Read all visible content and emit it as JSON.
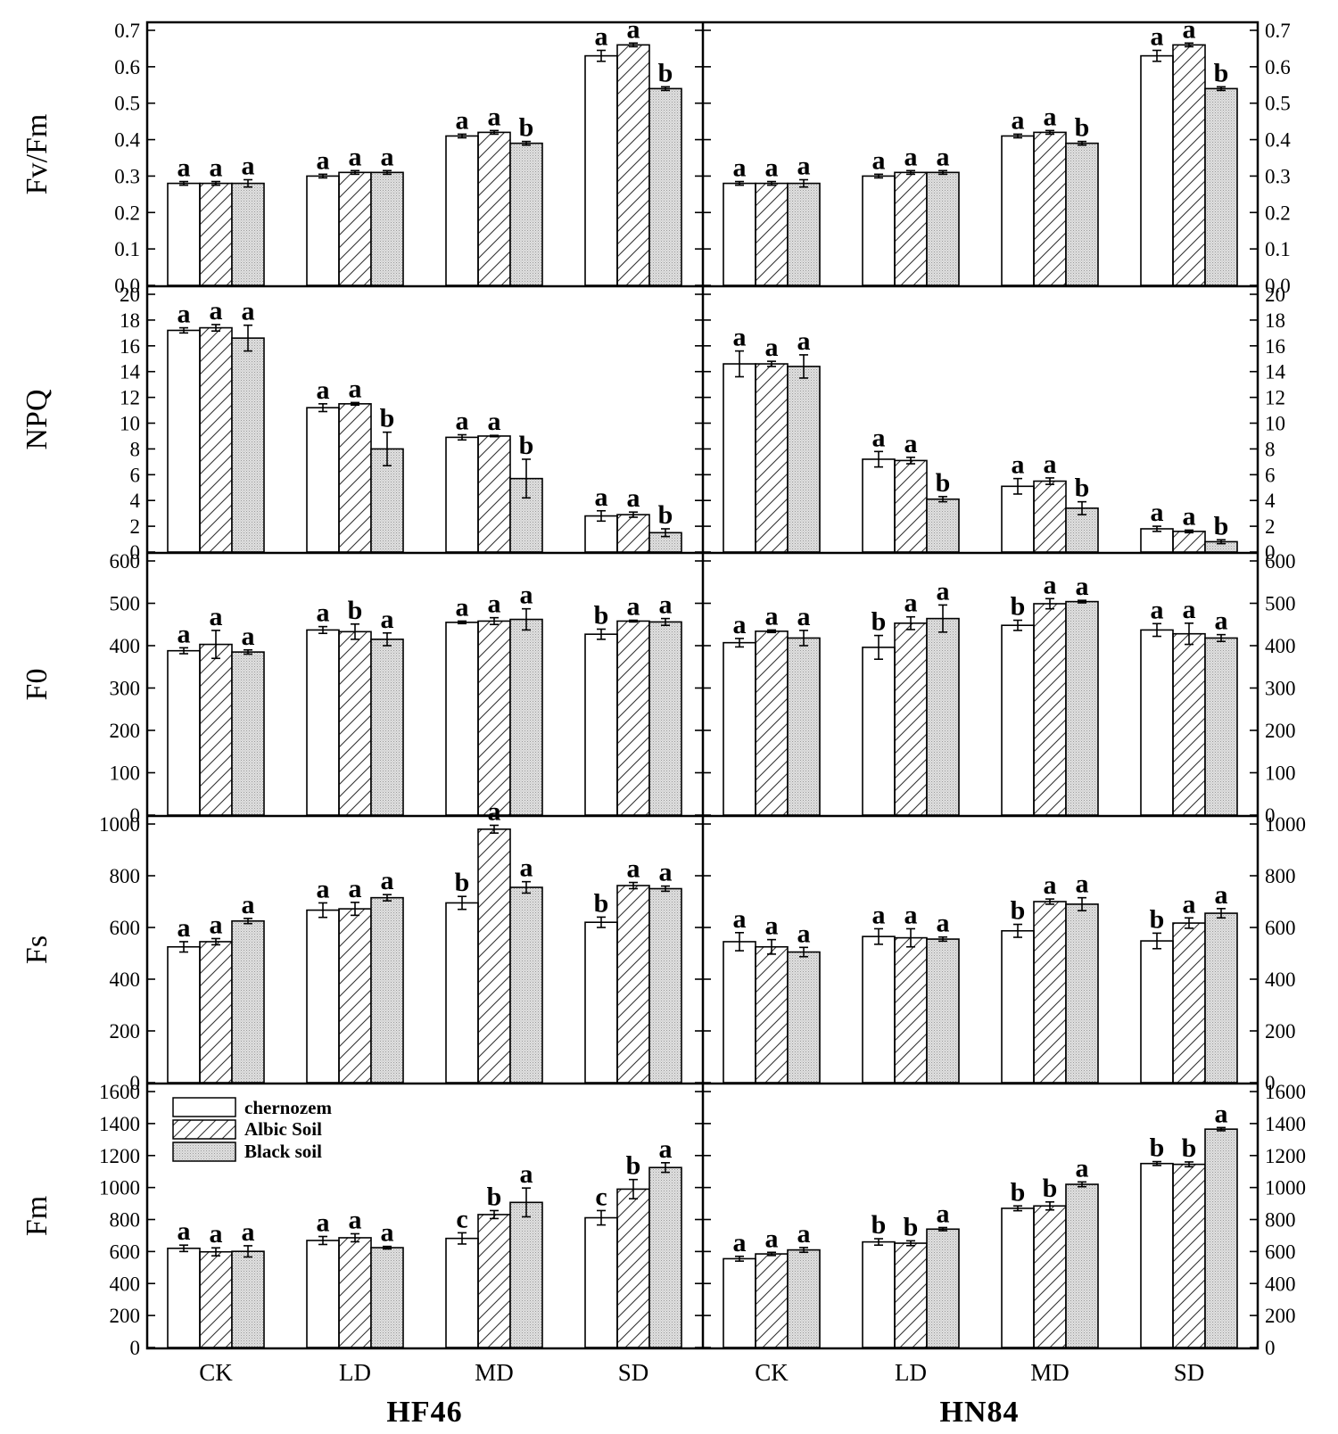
{
  "chart_data": {
    "type": "bar",
    "categories": [
      "CK",
      "LD",
      "MD",
      "SD"
    ],
    "groups": [
      "HF46",
      "HN84"
    ],
    "legend": [
      "chernozem",
      "Albic Soil",
      "Black soil"
    ],
    "panels": [
      {
        "ylabel": "Fv/Fm",
        "ylim": [
          0,
          0.7
        ],
        "yticks_left": [
          "0.0",
          "0.1",
          "0.2",
          "0.3",
          "0.4",
          "0.5",
          "0.6",
          "0.7"
        ],
        "yticks_right": [
          "0.0",
          "0.1",
          "0.2",
          "0.3",
          "0.4",
          "0.5",
          "0.6",
          "0.7"
        ],
        "HF46": {
          "values": [
            [
              0.28,
              0.28,
              0.28
            ],
            [
              0.3,
              0.31,
              0.31
            ],
            [
              0.41,
              0.42,
              0.39
            ],
            [
              0.63,
              0.66,
              0.54
            ]
          ],
          "errors": [
            [
              0.005,
              0.005,
              0.01
            ],
            [
              0.005,
              0.005,
              0.005
            ],
            [
              0.005,
              0.005,
              0.005
            ],
            [
              0.015,
              0.005,
              0.005
            ]
          ],
          "letters": [
            [
              "a",
              "a",
              "a"
            ],
            [
              "a",
              "a",
              "a"
            ],
            [
              "a",
              "a",
              "b"
            ],
            [
              "a",
              "a",
              "b"
            ]
          ]
        },
        "HN84": {
          "values": [
            [
              0.28,
              0.28,
              0.28
            ],
            [
              0.3,
              0.31,
              0.31
            ],
            [
              0.41,
              0.42,
              0.39
            ],
            [
              0.63,
              0.66,
              0.54
            ]
          ],
          "errors": [
            [
              0.005,
              0.005,
              0.01
            ],
            [
              0.005,
              0.005,
              0.005
            ],
            [
              0.005,
              0.005,
              0.005
            ],
            [
              0.015,
              0.005,
              0.005
            ]
          ],
          "letters": [
            [
              "a",
              "a",
              "a"
            ],
            [
              "a",
              "a",
              "a"
            ],
            [
              "a",
              "a",
              "b"
            ],
            [
              "a",
              "a",
              "b"
            ]
          ]
        }
      },
      {
        "ylabel": "NPQ",
        "ylim": [
          0,
          20
        ],
        "yticks_left": [
          "0",
          "2",
          "4",
          "6",
          "8",
          "10",
          "12",
          "14",
          "16",
          "18",
          "20"
        ],
        "yticks_right": [
          "0",
          "2",
          "4",
          "6",
          "8",
          "10",
          "12",
          "14",
          "16",
          "18",
          "20"
        ],
        "HF46": {
          "values": [
            [
              17.2,
              17.4,
              16.6
            ],
            [
              11.2,
              11.5,
              8.0
            ],
            [
              8.9,
              9.0,
              5.7
            ],
            [
              2.8,
              2.9,
              1.5
            ]
          ],
          "errors": [
            [
              0.2,
              0.25,
              1.0
            ],
            [
              0.3,
              0.1,
              1.3
            ],
            [
              0.2,
              0.05,
              1.5
            ],
            [
              0.4,
              0.2,
              0.3
            ]
          ],
          "letters": [
            [
              "a",
              "a",
              "a"
            ],
            [
              "a",
              "a",
              "b"
            ],
            [
              "a",
              "a",
              "b"
            ],
            [
              "a",
              "a",
              "b"
            ]
          ]
        },
        "HN84": {
          "values": [
            [
              14.6,
              14.6,
              14.4
            ],
            [
              7.2,
              7.1,
              4.1
            ],
            [
              5.1,
              5.5,
              3.4
            ],
            [
              1.8,
              1.6,
              0.8
            ]
          ],
          "errors": [
            [
              1.0,
              0.2,
              0.9
            ],
            [
              0.6,
              0.25,
              0.2
            ],
            [
              0.6,
              0.25,
              0.5
            ],
            [
              0.2,
              0.1,
              0.15
            ]
          ],
          "letters": [
            [
              "a",
              "a",
              "a"
            ],
            [
              "a",
              "a",
              "b"
            ],
            [
              "a",
              "a",
              "b"
            ],
            [
              "a",
              "a",
              "b"
            ]
          ]
        }
      },
      {
        "ylabel": "F0",
        "ylim": [
          0,
          600
        ],
        "yticks_left": [
          "0",
          "100",
          "200",
          "300",
          "400",
          "500",
          "600"
        ],
        "yticks_right": [
          "0",
          "100",
          "200",
          "300",
          "400",
          "500",
          "600"
        ],
        "HF46": {
          "values": [
            [
              388,
              403,
              385
            ],
            [
              437,
              433,
              415
            ],
            [
              455,
              458,
              462
            ],
            [
              427,
              458,
              456
            ]
          ],
          "errors": [
            [
              7,
              33,
              5
            ],
            [
              8,
              18,
              15
            ],
            [
              3,
              8,
              25
            ],
            [
              12,
              2,
              8
            ]
          ],
          "letters": [
            [
              "a",
              "a",
              "a"
            ],
            [
              "a",
              "b",
              "a"
            ],
            [
              "a",
              "a",
              "a"
            ],
            [
              "b",
              "a",
              "a"
            ]
          ]
        },
        "HN84": {
          "values": [
            [
              407,
              434,
              418
            ],
            [
              396,
              453,
              464
            ],
            [
              448,
              499,
              504
            ],
            [
              437,
              428,
              418
            ]
          ],
          "errors": [
            [
              10,
              3,
              18
            ],
            [
              28,
              15,
              32
            ],
            [
              12,
              12,
              3
            ],
            [
              15,
              25,
              8
            ]
          ],
          "letters": [
            [
              "a",
              "a",
              "a"
            ],
            [
              "b",
              "a",
              "a"
            ],
            [
              "b",
              "a",
              "a"
            ],
            [
              "a",
              "a",
              "a"
            ]
          ]
        }
      },
      {
        "ylabel": "Fs",
        "ylim": [
          0,
          1000
        ],
        "yticks_left": [
          "0",
          "200",
          "400",
          "600",
          "800",
          "1000"
        ],
        "yticks_right": [
          "0",
          "200",
          "400",
          "600",
          "800",
          "1000"
        ],
        "HF46": {
          "values": [
            [
              525,
              545,
              625
            ],
            [
              667,
              672,
              715
            ],
            [
              695,
              980,
              755
            ],
            [
              620,
              762,
              750
            ]
          ],
          "errors": [
            [
              20,
              12,
              10
            ],
            [
              28,
              25,
              12
            ],
            [
              25,
              15,
              22
            ],
            [
              20,
              12,
              10
            ]
          ],
          "letters": [
            [
              "a",
              "a",
              "a"
            ],
            [
              "a",
              "a",
              "a"
            ],
            [
              "b",
              "a",
              "a"
            ],
            [
              "b",
              "a",
              "a"
            ]
          ]
        },
        "HN84": {
          "values": [
            [
              545,
              525,
              505
            ],
            [
              565,
              560,
              555
            ],
            [
              587,
              700,
              690
            ],
            [
              548,
              617,
              655
            ]
          ],
          "errors": [
            [
              35,
              28,
              18
            ],
            [
              30,
              35,
              8
            ],
            [
              25,
              10,
              25
            ],
            [
              30,
              20,
              18
            ]
          ],
          "letters": [
            [
              "a",
              "a",
              "a"
            ],
            [
              "a",
              "a",
              "a"
            ],
            [
              "b",
              "a",
              "a"
            ],
            [
              "b",
              "a",
              "a"
            ]
          ]
        }
      },
      {
        "ylabel": "Fm",
        "ylim": [
          0,
          1600
        ],
        "yticks_left": [
          "0",
          "200",
          "400",
          "600",
          "800",
          "1000",
          "1200",
          "1400",
          "1600"
        ],
        "yticks_right": [
          "0",
          "200",
          "400",
          "600",
          "800",
          "1000",
          "1200",
          "1400",
          "1600"
        ],
        "HF46": {
          "values": [
            [
              620,
              598,
              601
            ],
            [
              669,
              686,
              624
            ],
            [
              682,
              831,
              907
            ],
            [
              811,
              990,
              1125
            ]
          ],
          "errors": [
            [
              20,
              25,
              35
            ],
            [
              25,
              25,
              8
            ],
            [
              35,
              25,
              90
            ],
            [
              45,
              60,
              30
            ]
          ],
          "letters": [
            [
              "a",
              "a",
              "a"
            ],
            [
              "a",
              "a",
              "a"
            ],
            [
              "c",
              "b",
              "a"
            ],
            [
              "c",
              "b",
              "a"
            ]
          ]
        },
        "HN84": {
          "values": [
            [
              555,
              585,
              610
            ],
            [
              660,
              652,
              740
            ],
            [
              870,
              885,
              1020
            ],
            [
              1150,
              1145,
              1365
            ]
          ],
          "errors": [
            [
              15,
              10,
              15
            ],
            [
              20,
              15,
              10
            ],
            [
              15,
              25,
              15
            ],
            [
              12,
              15,
              10
            ]
          ],
          "letters": [
            [
              "a",
              "a",
              "a"
            ],
            [
              "b",
              "b",
              "a"
            ],
            [
              "b",
              "b",
              "a"
            ],
            [
              "b",
              "b",
              "a"
            ]
          ]
        }
      }
    ]
  }
}
